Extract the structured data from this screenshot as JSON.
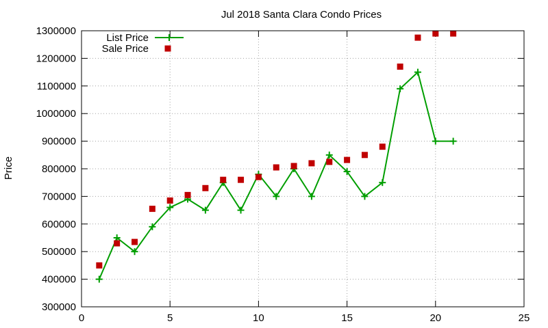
{
  "chart_data": {
    "type": "line",
    "title": "Jul 2018 Santa Clara Condo Prices",
    "xlabel": "",
    "ylabel": "Price",
    "xlim": [
      0,
      25
    ],
    "ylim": [
      300000,
      1300000
    ],
    "x_ticks": [
      0,
      5,
      10,
      15,
      20,
      25
    ],
    "y_ticks": [
      300000,
      400000,
      500000,
      600000,
      700000,
      800000,
      900000,
      1000000,
      1100000,
      1200000,
      1300000
    ],
    "grid": true,
    "legend_position": "top-left",
    "series": [
      {
        "name": "List Price",
        "style": "line-with-plus-markers",
        "color": "#009e00",
        "x": [
          1,
          2,
          3,
          4,
          5,
          6,
          7,
          8,
          9,
          10,
          11,
          12,
          13,
          14,
          15,
          16,
          17,
          18,
          19,
          20,
          21
        ],
        "y": [
          400000,
          550000,
          500000,
          590000,
          660000,
          690000,
          650000,
          750000,
          650000,
          780000,
          700000,
          800000,
          700000,
          850000,
          790000,
          700000,
          750000,
          1090000,
          1150000,
          900000,
          900000
        ]
      },
      {
        "name": "Sale Price",
        "style": "square-markers",
        "color": "#c00000",
        "x": [
          1,
          2,
          3,
          4,
          5,
          6,
          7,
          8,
          9,
          10,
          11,
          12,
          13,
          14,
          15,
          16,
          17,
          18,
          19,
          20,
          21
        ],
        "y": [
          450000,
          530000,
          535000,
          655000,
          685000,
          705000,
          730000,
          760000,
          760000,
          770000,
          805000,
          810000,
          820000,
          825000,
          832000,
          850000,
          880000,
          1170000,
          1275000,
          1290000,
          1290000
        ]
      }
    ]
  }
}
